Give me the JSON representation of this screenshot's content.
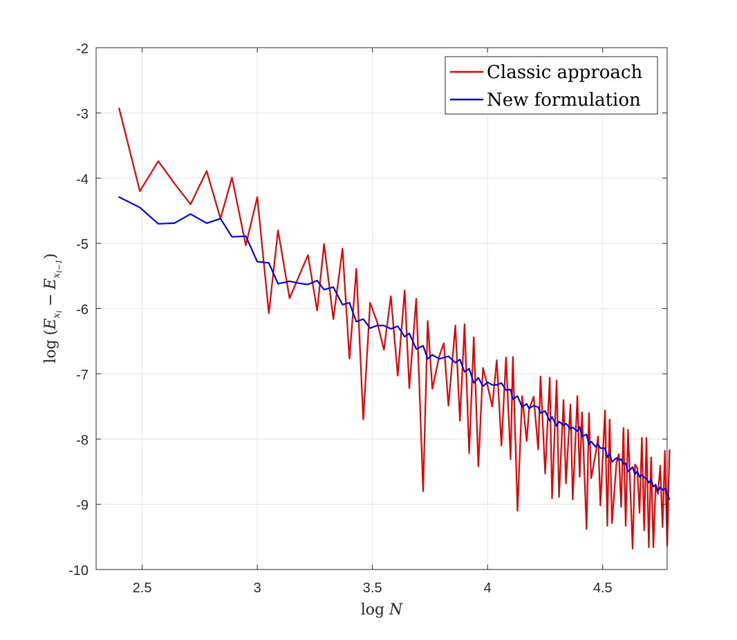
{
  "chart_data": {
    "type": "line",
    "title": "",
    "xlabel": "log N",
    "ylabel": "log (E_{x_i} − E_{x_{i−1}})",
    "xlim": [
      2.3,
      4.78
    ],
    "ylim": [
      -10,
      -2
    ],
    "xticks": [
      2.5,
      3,
      3.5,
      4,
      4.5
    ],
    "xtick_labels": [
      "2.5",
      "3",
      "3.5",
      "4",
      "4.5"
    ],
    "yticks": [
      -2,
      -3,
      -4,
      -5,
      -6,
      -7,
      -8,
      -9,
      -10
    ],
    "ytick_labels": [
      "-2",
      "-3",
      "-4",
      "-5",
      "-6",
      "-7",
      "-8",
      "-9",
      "-10"
    ],
    "grid": true,
    "legend_position": "top-right",
    "series": [
      {
        "name": "Classic approach",
        "color": "#e60000",
        "points": [
          [
            2.4,
            -2.93
          ],
          [
            2.49,
            -4.2
          ],
          [
            2.57,
            -3.74
          ],
          [
            2.64,
            -4.08
          ],
          [
            2.71,
            -4.4
          ],
          [
            2.78,
            -3.89
          ],
          [
            2.84,
            -4.62
          ],
          [
            2.89,
            -3.99
          ],
          [
            2.95,
            -5.03
          ],
          [
            3.0,
            -4.29
          ],
          [
            3.05,
            -6.07
          ],
          [
            3.09,
            -4.8
          ],
          [
            3.14,
            -5.84
          ],
          [
            3.18,
            -5.51
          ],
          [
            3.22,
            -5.18
          ],
          [
            3.26,
            -6.03
          ],
          [
            3.29,
            -5.01
          ],
          [
            3.33,
            -6.16
          ],
          [
            3.37,
            -5.08
          ],
          [
            3.4,
            -6.77
          ],
          [
            3.43,
            -5.39
          ],
          [
            3.46,
            -7.7
          ],
          [
            3.49,
            -5.91
          ],
          [
            3.52,
            -6.2
          ],
          [
            3.55,
            -6.63
          ],
          [
            3.58,
            -5.81
          ],
          [
            3.61,
            -7.03
          ],
          [
            3.64,
            -5.72
          ],
          [
            3.66,
            -7.22
          ],
          [
            3.69,
            -5.85
          ],
          [
            3.72,
            -8.8
          ],
          [
            3.74,
            -6.19
          ],
          [
            3.76,
            -7.23
          ],
          [
            3.79,
            -6.73
          ],
          [
            3.81,
            -6.53
          ],
          [
            3.83,
            -7.49
          ],
          [
            3.86,
            -6.26
          ],
          [
            3.88,
            -7.72
          ],
          [
            3.9,
            -6.24
          ],
          [
            3.92,
            -8.22
          ],
          [
            3.94,
            -6.44
          ],
          [
            3.96,
            -8.42
          ],
          [
            3.98,
            -6.91
          ],
          [
            4.0,
            -7.18
          ],
          [
            4.02,
            -7.5
          ],
          [
            4.04,
            -6.79
          ],
          [
            4.06,
            -8.1
          ],
          [
            4.08,
            -6.75
          ],
          [
            4.1,
            -8.31
          ],
          [
            4.11,
            -6.74
          ],
          [
            4.13,
            -9.1
          ],
          [
            4.15,
            -7.34
          ],
          [
            4.17,
            -8.03
          ],
          [
            4.18,
            -7.55
          ],
          [
            4.2,
            -7.35
          ],
          [
            4.22,
            -8.16
          ],
          [
            4.23,
            -7.04
          ],
          [
            4.25,
            -8.53
          ],
          [
            4.27,
            -7.06
          ],
          [
            4.28,
            -8.91
          ],
          [
            4.3,
            -7.1
          ],
          [
            4.31,
            -8.89
          ],
          [
            4.33,
            -7.4
          ],
          [
            4.34,
            -8.68
          ],
          [
            4.36,
            -7.47
          ],
          [
            4.37,
            -8.93
          ],
          [
            4.39,
            -7.34
          ],
          [
            4.4,
            -8.58
          ],
          [
            4.41,
            -7.59
          ],
          [
            4.43,
            -9.38
          ],
          [
            4.44,
            -7.6
          ],
          [
            4.45,
            -8.6
          ],
          [
            4.47,
            -8.21
          ],
          [
            4.48,
            -7.96
          ],
          [
            4.49,
            -9.02
          ],
          [
            4.51,
            -7.56
          ],
          [
            4.52,
            -9.33
          ],
          [
            4.53,
            -7.7
          ],
          [
            4.54,
            -9.29
          ],
          [
            4.56,
            -8.36
          ],
          [
            4.57,
            -8.23
          ],
          [
            4.58,
            -9.04
          ],
          [
            4.59,
            -7.83
          ],
          [
            4.6,
            -9.33
          ],
          [
            4.61,
            -7.86
          ],
          [
            4.63,
            -9.68
          ],
          [
            4.64,
            -8.39
          ],
          [
            4.65,
            -8.44
          ],
          [
            4.66,
            -9.13
          ],
          [
            4.67,
            -7.98
          ],
          [
            4.68,
            -9.4
          ],
          [
            4.69,
            -7.98
          ],
          [
            4.7,
            -9.66
          ],
          [
            4.71,
            -8.28
          ],
          [
            4.72,
            -9.66
          ],
          [
            4.73,
            -8.72
          ],
          [
            4.74,
            -8.84
          ],
          [
            4.75,
            -8.41
          ],
          [
            4.76,
            -9.35
          ],
          [
            4.77,
            -8.18
          ],
          [
            4.78,
            -9.64
          ],
          [
            4.79,
            -8.17
          ]
        ]
      },
      {
        "name": "New formulation",
        "color": "#0000e0",
        "points": [
          [
            2.4,
            -4.29
          ],
          [
            2.49,
            -4.45
          ],
          [
            2.57,
            -4.7
          ],
          [
            2.64,
            -4.69
          ],
          [
            2.71,
            -4.55
          ],
          [
            2.78,
            -4.69
          ],
          [
            2.84,
            -4.62
          ],
          [
            2.89,
            -4.9
          ],
          [
            2.95,
            -4.89
          ],
          [
            3.0,
            -5.28
          ],
          [
            3.05,
            -5.3
          ],
          [
            3.09,
            -5.62
          ],
          [
            3.14,
            -5.58
          ],
          [
            3.18,
            -5.61
          ],
          [
            3.22,
            -5.63
          ],
          [
            3.26,
            -5.57
          ],
          [
            3.29,
            -5.71
          ],
          [
            3.33,
            -5.67
          ],
          [
            3.37,
            -5.94
          ],
          [
            3.4,
            -5.91
          ],
          [
            3.43,
            -6.2
          ],
          [
            3.46,
            -6.16
          ],
          [
            3.49,
            -6.3
          ],
          [
            3.52,
            -6.26
          ],
          [
            3.55,
            -6.26
          ],
          [
            3.58,
            -6.31
          ],
          [
            3.61,
            -6.27
          ],
          [
            3.64,
            -6.43
          ],
          [
            3.66,
            -6.38
          ],
          [
            3.69,
            -6.62
          ],
          [
            3.72,
            -6.57
          ],
          [
            3.74,
            -6.77
          ],
          [
            3.76,
            -6.71
          ],
          [
            3.79,
            -6.77
          ],
          [
            3.81,
            -6.75
          ],
          [
            3.83,
            -6.73
          ],
          [
            3.86,
            -6.83
          ],
          [
            3.88,
            -6.78
          ],
          [
            3.9,
            -6.97
          ],
          [
            3.92,
            -6.92
          ],
          [
            3.94,
            -7.14
          ],
          [
            3.96,
            -7.06
          ],
          [
            3.98,
            -7.19
          ],
          [
            4.0,
            -7.13
          ],
          [
            4.02,
            -7.17
          ],
          [
            4.04,
            -7.17
          ],
          [
            4.06,
            -7.14
          ],
          [
            4.08,
            -7.25
          ],
          [
            4.1,
            -7.24
          ],
          [
            4.11,
            -7.39
          ],
          [
            4.13,
            -7.34
          ],
          [
            4.15,
            -7.51
          ],
          [
            4.17,
            -7.46
          ],
          [
            4.18,
            -7.53
          ],
          [
            4.2,
            -7.49
          ],
          [
            4.22,
            -7.51
          ],
          [
            4.23,
            -7.6
          ],
          [
            4.25,
            -7.57
          ],
          [
            4.27,
            -7.72
          ],
          [
            4.28,
            -7.66
          ],
          [
            4.3,
            -7.8
          ],
          [
            4.31,
            -7.73
          ],
          [
            4.33,
            -7.79
          ],
          [
            4.34,
            -7.76
          ],
          [
            4.36,
            -7.84
          ],
          [
            4.37,
            -7.82
          ],
          [
            4.39,
            -7.88
          ],
          [
            4.4,
            -7.81
          ],
          [
            4.41,
            -7.96
          ],
          [
            4.43,
            -7.93
          ],
          [
            4.44,
            -8.08
          ],
          [
            4.45,
            -8.04
          ],
          [
            4.47,
            -8.12
          ],
          [
            4.48,
            -8.08
          ],
          [
            4.49,
            -8.14
          ],
          [
            4.51,
            -8.14
          ],
          [
            4.52,
            -8.28
          ],
          [
            4.53,
            -8.22
          ],
          [
            4.54,
            -8.35
          ],
          [
            4.56,
            -8.29
          ],
          [
            4.57,
            -8.32
          ],
          [
            4.58,
            -8.31
          ],
          [
            4.59,
            -8.38
          ],
          [
            4.6,
            -8.37
          ],
          [
            4.61,
            -8.5
          ],
          [
            4.63,
            -8.43
          ],
          [
            4.64,
            -8.54
          ],
          [
            4.65,
            -8.49
          ],
          [
            4.66,
            -8.58
          ],
          [
            4.67,
            -8.55
          ],
          [
            4.68,
            -8.59
          ],
          [
            4.69,
            -8.6
          ],
          [
            4.7,
            -8.67
          ],
          [
            4.71,
            -8.62
          ],
          [
            4.72,
            -8.73
          ],
          [
            4.73,
            -8.7
          ],
          [
            4.74,
            -8.8
          ],
          [
            4.75,
            -8.74
          ],
          [
            4.76,
            -8.78
          ],
          [
            4.77,
            -8.76
          ],
          [
            4.78,
            -8.84
          ],
          [
            4.79,
            -8.92
          ]
        ]
      }
    ]
  }
}
